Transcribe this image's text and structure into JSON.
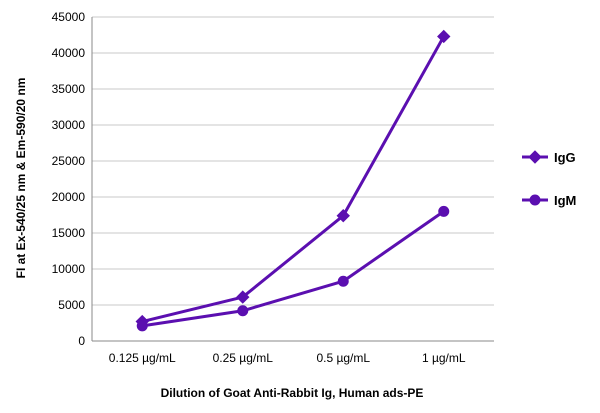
{
  "chart_data": {
    "type": "line",
    "title": "",
    "xlabel": "Dilution of Goat Anti-Rabbit Ig, Human ads-PE",
    "ylabel": "FI at Ex-540/25 nm & Em-590/20 nm",
    "categories": [
      "0.125 µg/mL",
      "0.25 µg/mL",
      "0.5 µg/mL",
      "1 µg/mL"
    ],
    "ylim": [
      0,
      45000
    ],
    "yticks": [
      0,
      5000,
      10000,
      15000,
      20000,
      25000,
      30000,
      35000,
      40000,
      45000
    ],
    "grid": true,
    "legend_position": "right",
    "series": [
      {
        "name": "IgG",
        "marker": "diamond",
        "color": "#5b0fb0",
        "values": [
          2700,
          6100,
          17400,
          42300
        ]
      },
      {
        "name": "IgM",
        "marker": "circle",
        "color": "#5b0fb0",
        "values": [
          2100,
          4200,
          8300,
          18000
        ]
      }
    ]
  }
}
